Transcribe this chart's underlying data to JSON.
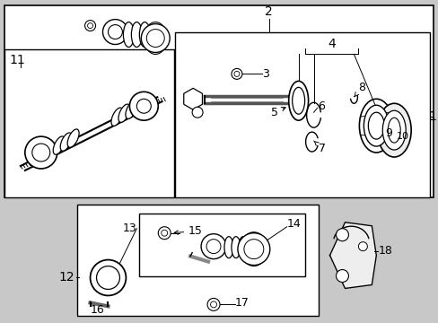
{
  "bg_color": "#ffffff",
  "line_color": "#000000",
  "text_color": "#000000",
  "fig_bg": "#c8c8c8",
  "fontsize": 9
}
